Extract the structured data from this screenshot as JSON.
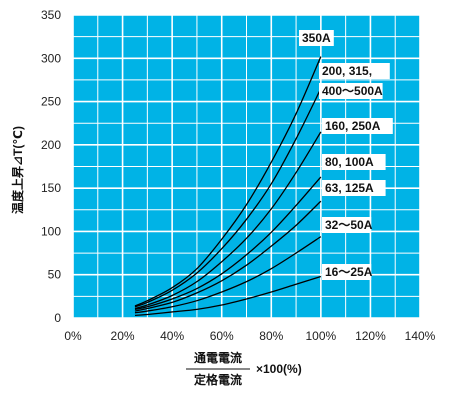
{
  "chart_data": {
    "type": "line",
    "ylabel": "温度上昇⊿T(℃)",
    "xlabel": {
      "numerator": "通電電流",
      "denominator": "定格電流",
      "suffix": "×100(%)"
    },
    "xlim": [
      0,
      140
    ],
    "ylim": [
      0,
      350
    ],
    "x_ticks": [
      "0%",
      "20%",
      "40%",
      "60%",
      "80%",
      "100%",
      "120%",
      "140%"
    ],
    "y_ticks": [
      "0",
      "50",
      "100",
      "150",
      "200",
      "250",
      "300",
      "350"
    ],
    "grid": true,
    "colors": {
      "plot_bg": "#00b3e6",
      "grid": "#ffffff",
      "line": "#000000"
    },
    "series": [
      {
        "name": "350A",
        "label_lines": [
          "350A"
        ],
        "x": [
          25,
          30,
          40,
          50,
          60,
          70,
          80,
          90,
          100
        ],
        "y": [
          14,
          20,
          35,
          57,
          91,
          131,
          180,
          236,
          302
        ]
      },
      {
        "name": "200, 315, 400〜500A",
        "label_lines": [
          "200, 315,",
          "400〜500A"
        ],
        "x": [
          25,
          30,
          40,
          50,
          60,
          70,
          80,
          90,
          100
        ],
        "y": [
          13,
          18,
          32,
          52,
          80,
          114,
          155,
          207,
          265
        ]
      },
      {
        "name": "160, 250A",
        "label_lines": [
          "160, 250A"
        ],
        "x": [
          25,
          30,
          40,
          50,
          60,
          70,
          80,
          90,
          100
        ],
        "y": [
          11,
          15,
          26,
          42,
          65,
          92,
          126,
          168,
          215
        ]
      },
      {
        "name": "80, 100A",
        "label_lines": [
          "80, 100A"
        ],
        "x": [
          25,
          30,
          40,
          50,
          60,
          70,
          80,
          90,
          100
        ],
        "y": [
          10,
          13,
          22,
          34,
          51,
          73,
          99,
          130,
          163
        ]
      },
      {
        "name": "63, 125A",
        "label_lines": [
          "63, 125A"
        ],
        "x": [
          25,
          30,
          40,
          50,
          60,
          70,
          80,
          90,
          100
        ],
        "y": [
          8,
          11,
          18,
          29,
          43,
          61,
          83,
          107,
          135
        ]
      },
      {
        "name": "32〜50A",
        "label_lines": [
          "32〜50A"
        ],
        "x": [
          25,
          30,
          40,
          50,
          60,
          70,
          80,
          90,
          100
        ],
        "y": [
          6,
          8,
          13,
          20,
          30,
          42,
          57,
          75,
          94
        ]
      },
      {
        "name": "16〜25A",
        "label_lines": [
          "16〜25A"
        ],
        "x": [
          25,
          30,
          40,
          50,
          60,
          70,
          80,
          90,
          100
        ],
        "y": [
          3,
          4,
          7,
          10,
          15,
          22,
          30,
          39,
          48
        ]
      }
    ]
  }
}
